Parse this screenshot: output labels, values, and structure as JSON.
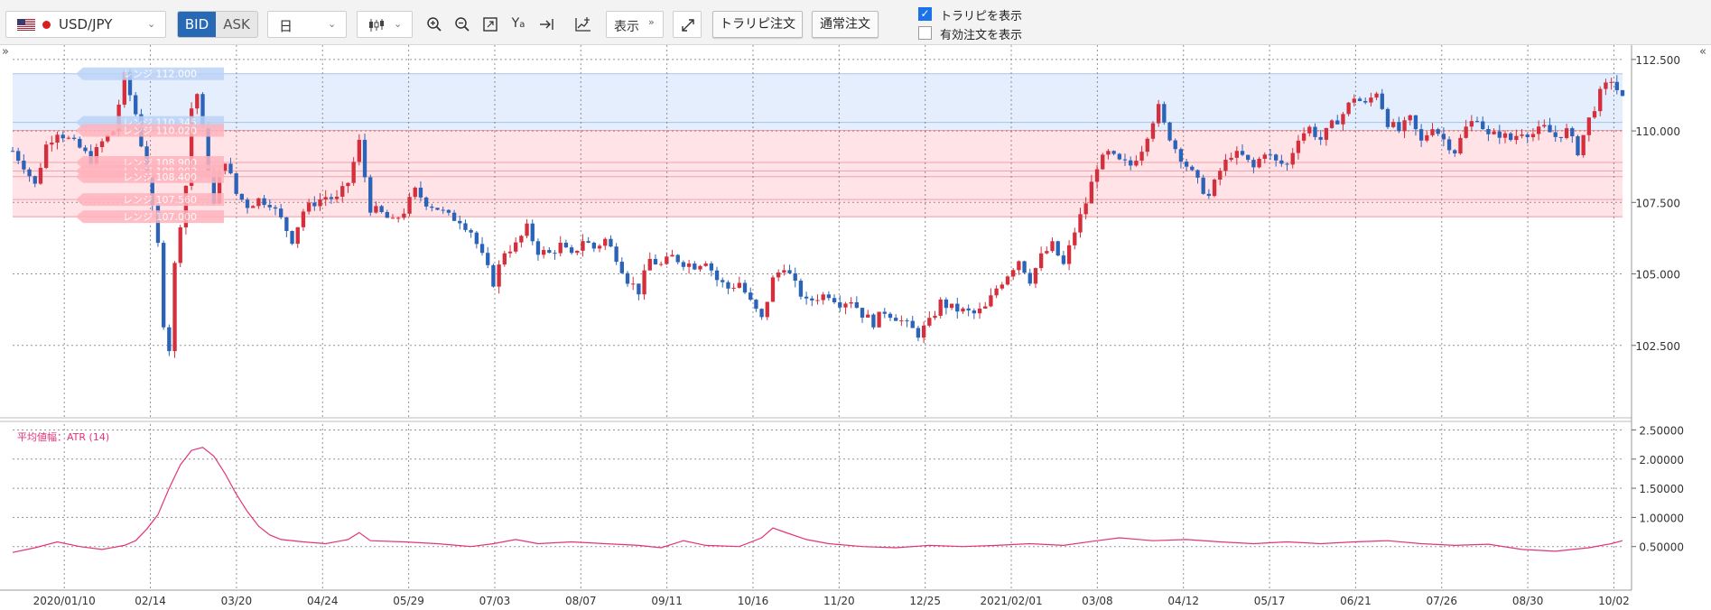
{
  "toolbar": {
    "symbol": "USD/JPY",
    "bid_label": "BID",
    "ask_label": "ASK",
    "period": "日",
    "display_label": "表示",
    "trap_order_label": "トラリピ注文",
    "normal_order_label": "通常注文",
    "show_trap_label": "トラリピを表示",
    "show_trap_checked": true,
    "show_active_orders_label": "有効注文を表示",
    "show_active_orders_checked": false,
    "icons": [
      "zoom-in-icon",
      "zoom-out-icon",
      "fit-icon",
      "price-label-icon",
      "scroll-end-icon",
      "add-indicator-icon",
      "fullscreen-icon"
    ]
  },
  "colors": {
    "up": "#d32f3c",
    "down": "#2b63b8",
    "atr_line": "#e3337a",
    "range_buy": "#ffd9dd",
    "range_sell": "#dce8fb",
    "accent": "#2869b5"
  },
  "chart_data": {
    "type": "candlestick",
    "instrument": "USD/JPY",
    "price_axis": {
      "ticks": [
        "112.500",
        "110.000",
        "107.500",
        "105.000",
        "102.500"
      ],
      "ylim": [
        100.0,
        113.0
      ]
    },
    "x_ticks": [
      "2020/01/10",
      "02/14",
      "03/20",
      "04/24",
      "05/29",
      "07/03",
      "08/07",
      "09/11",
      "10/16",
      "11/20",
      "12/25",
      "2021/02/01",
      "03/08",
      "04/12",
      "05/17",
      "06/21",
      "07/26",
      "08/30",
      "10/02"
    ],
    "close_path": [
      {
        "x": 0,
        "y": 109.3
      },
      {
        "x": 2,
        "y": 108.8
      },
      {
        "x": 4,
        "y": 108.1
      },
      {
        "x": 6,
        "y": 109.5
      },
      {
        "x": 8,
        "y": 110.0
      },
      {
        "x": 10,
        "y": 109.7
      },
      {
        "x": 12,
        "y": 109.4
      },
      {
        "x": 14,
        "y": 109.0
      },
      {
        "x": 16,
        "y": 109.6
      },
      {
        "x": 18,
        "y": 110.0
      },
      {
        "x": 20,
        "y": 111.9
      },
      {
        "x": 22,
        "y": 110.6
      },
      {
        "x": 24,
        "y": 108.5
      },
      {
        "x": 26,
        "y": 106.0
      },
      {
        "x": 27,
        "y": 103.3
      },
      {
        "x": 28,
        "y": 102.4
      },
      {
        "x": 29,
        "y": 105.3
      },
      {
        "x": 30,
        "y": 106.8
      },
      {
        "x": 31,
        "y": 108.1
      },
      {
        "x": 32,
        "y": 110.8
      },
      {
        "x": 33,
        "y": 111.3
      },
      {
        "x": 34,
        "y": 110.0
      },
      {
        "x": 35,
        "y": 108.7
      },
      {
        "x": 36,
        "y": 107.4
      },
      {
        "x": 37,
        "y": 108.5
      },
      {
        "x": 38,
        "y": 109.0
      },
      {
        "x": 40,
        "y": 107.8
      },
      {
        "x": 42,
        "y": 107.4
      },
      {
        "x": 44,
        "y": 107.6
      },
      {
        "x": 46,
        "y": 107.5
      },
      {
        "x": 48,
        "y": 106.9
      },
      {
        "x": 50,
        "y": 106.2
      },
      {
        "x": 52,
        "y": 107.2
      },
      {
        "x": 54,
        "y": 107.5
      },
      {
        "x": 56,
        "y": 107.7
      },
      {
        "x": 58,
        "y": 107.6
      },
      {
        "x": 60,
        "y": 108.2
      },
      {
        "x": 62,
        "y": 109.6
      },
      {
        "x": 63,
        "y": 108.4
      },
      {
        "x": 64,
        "y": 107.3
      },
      {
        "x": 66,
        "y": 107.1
      },
      {
        "x": 68,
        "y": 106.8
      },
      {
        "x": 70,
        "y": 107.2
      },
      {
        "x": 72,
        "y": 107.9
      },
      {
        "x": 74,
        "y": 107.5
      },
      {
        "x": 76,
        "y": 107.3
      },
      {
        "x": 78,
        "y": 107.0
      },
      {
        "x": 80,
        "y": 106.9
      },
      {
        "x": 82,
        "y": 106.5
      },
      {
        "x": 84,
        "y": 105.6
      },
      {
        "x": 86,
        "y": 104.7
      },
      {
        "x": 88,
        "y": 105.8
      },
      {
        "x": 90,
        "y": 106.0
      },
      {
        "x": 92,
        "y": 106.6
      },
      {
        "x": 94,
        "y": 105.8
      },
      {
        "x": 96,
        "y": 105.7
      },
      {
        "x": 98,
        "y": 106.0
      },
      {
        "x": 100,
        "y": 105.6
      },
      {
        "x": 102,
        "y": 106.2
      },
      {
        "x": 104,
        "y": 105.9
      },
      {
        "x": 106,
        "y": 106.2
      },
      {
        "x": 108,
        "y": 105.6
      },
      {
        "x": 110,
        "y": 104.8
      },
      {
        "x": 112,
        "y": 104.4
      },
      {
        "x": 114,
        "y": 105.5
      },
      {
        "x": 116,
        "y": 105.3
      },
      {
        "x": 118,
        "y": 105.6
      },
      {
        "x": 120,
        "y": 105.4
      },
      {
        "x": 122,
        "y": 105.3
      },
      {
        "x": 124,
        "y": 105.5
      },
      {
        "x": 126,
        "y": 104.8
      },
      {
        "x": 128,
        "y": 104.5
      },
      {
        "x": 130,
        "y": 104.7
      },
      {
        "x": 132,
        "y": 104.0
      },
      {
        "x": 134,
        "y": 103.4
      },
      {
        "x": 136,
        "y": 104.8
      },
      {
        "x": 138,
        "y": 105.3
      },
      {
        "x": 140,
        "y": 104.6
      },
      {
        "x": 142,
        "y": 104.0
      },
      {
        "x": 144,
        "y": 104.2
      },
      {
        "x": 146,
        "y": 104.3
      },
      {
        "x": 148,
        "y": 104.0
      },
      {
        "x": 150,
        "y": 104.1
      },
      {
        "x": 152,
        "y": 103.6
      },
      {
        "x": 154,
        "y": 103.3
      },
      {
        "x": 156,
        "y": 103.7
      },
      {
        "x": 158,
        "y": 103.5
      },
      {
        "x": 160,
        "y": 103.2
      },
      {
        "x": 162,
        "y": 102.9
      },
      {
        "x": 164,
        "y": 103.3
      },
      {
        "x": 166,
        "y": 104.0
      },
      {
        "x": 168,
        "y": 103.8
      },
      {
        "x": 170,
        "y": 103.7
      },
      {
        "x": 172,
        "y": 103.6
      },
      {
        "x": 174,
        "y": 103.8
      },
      {
        "x": 176,
        "y": 104.5
      },
      {
        "x": 178,
        "y": 105.0
      },
      {
        "x": 180,
        "y": 105.5
      },
      {
        "x": 182,
        "y": 104.8
      },
      {
        "x": 184,
        "y": 105.6
      },
      {
        "x": 186,
        "y": 106.0
      },
      {
        "x": 188,
        "y": 105.3
      },
      {
        "x": 190,
        "y": 106.5
      },
      {
        "x": 192,
        "y": 107.5
      },
      {
        "x": 194,
        "y": 108.8
      },
      {
        "x": 196,
        "y": 109.2
      },
      {
        "x": 198,
        "y": 108.9
      },
      {
        "x": 200,
        "y": 108.8
      },
      {
        "x": 202,
        "y": 109.4
      },
      {
        "x": 204,
        "y": 110.4
      },
      {
        "x": 205,
        "y": 110.8
      },
      {
        "x": 206,
        "y": 110.2
      },
      {
        "x": 208,
        "y": 109.4
      },
      {
        "x": 210,
        "y": 108.8
      },
      {
        "x": 212,
        "y": 108.2
      },
      {
        "x": 214,
        "y": 107.7
      },
      {
        "x": 216,
        "y": 108.6
      },
      {
        "x": 218,
        "y": 109.2
      },
      {
        "x": 220,
        "y": 109.1
      },
      {
        "x": 222,
        "y": 108.7
      },
      {
        "x": 224,
        "y": 109.3
      },
      {
        "x": 226,
        "y": 108.9
      },
      {
        "x": 228,
        "y": 108.8
      },
      {
        "x": 230,
        "y": 109.8
      },
      {
        "x": 232,
        "y": 110.1
      },
      {
        "x": 234,
        "y": 109.7
      },
      {
        "x": 236,
        "y": 110.2
      },
      {
        "x": 238,
        "y": 110.6
      },
      {
        "x": 240,
        "y": 111.2
      },
      {
        "x": 242,
        "y": 110.9
      },
      {
        "x": 244,
        "y": 111.4
      },
      {
        "x": 246,
        "y": 110.3
      },
      {
        "x": 248,
        "y": 110.0
      },
      {
        "x": 250,
        "y": 110.4
      },
      {
        "x": 252,
        "y": 109.6
      },
      {
        "x": 254,
        "y": 110.2
      },
      {
        "x": 256,
        "y": 109.7
      },
      {
        "x": 258,
        "y": 109.3
      },
      {
        "x": 260,
        "y": 110.1
      },
      {
        "x": 262,
        "y": 110.5
      },
      {
        "x": 264,
        "y": 109.8
      },
      {
        "x": 266,
        "y": 109.9
      },
      {
        "x": 268,
        "y": 109.7
      },
      {
        "x": 270,
        "y": 110.0
      },
      {
        "x": 272,
        "y": 109.9
      },
      {
        "x": 274,
        "y": 110.1
      },
      {
        "x": 276,
        "y": 109.8
      },
      {
        "x": 278,
        "y": 110.0
      },
      {
        "x": 280,
        "y": 109.3
      },
      {
        "x": 282,
        "y": 110.4
      },
      {
        "x": 284,
        "y": 111.3
      },
      {
        "x": 286,
        "y": 111.8
      },
      {
        "x": 288,
        "y": 111.1
      }
    ],
    "x_range": [
      0,
      288
    ],
    "trap_ranges": [
      {
        "type": "sell",
        "label": "レンジ 112.000",
        "from": 110.3,
        "to": 112.0
      },
      {
        "type": "sell",
        "label": "レンジ 110.345",
        "from": 110.0,
        "to": 110.3
      },
      {
        "type": "buy",
        "label": "レンジ 110.020",
        "from": 108.9,
        "to": 110.02
      },
      {
        "type": "buy",
        "label": "レンジ 108.900",
        "from": 108.6,
        "to": 108.9
      },
      {
        "type": "buy",
        "label": "レンジ 108.900",
        "from": 108.4,
        "to": 108.6
      },
      {
        "type": "buy",
        "label": "レンジ 108.400",
        "from": 107.6,
        "to": 108.4
      },
      {
        "type": "buy",
        "label": "レンジ 107.560",
        "from": 107.0,
        "to": 107.6
      },
      {
        "type": "buy",
        "label": "レンジ 107.000",
        "from": 107.0,
        "to": 107.0
      }
    ],
    "indicator": {
      "label": "平均値幅：ATR (14)",
      "axis_ticks": [
        "2.50000",
        "2.00000",
        "1.50000",
        "1.00000",
        "0.50000"
      ],
      "ylim": [
        0.0,
        2.6
      ],
      "path": [
        {
          "x": 0,
          "y": 0.4
        },
        {
          "x": 4,
          "y": 0.48
        },
        {
          "x": 8,
          "y": 0.58
        },
        {
          "x": 12,
          "y": 0.5
        },
        {
          "x": 16,
          "y": 0.45
        },
        {
          "x": 20,
          "y": 0.52
        },
        {
          "x": 22,
          "y": 0.6
        },
        {
          "x": 24,
          "y": 0.8
        },
        {
          "x": 26,
          "y": 1.05
        },
        {
          "x": 28,
          "y": 1.5
        },
        {
          "x": 30,
          "y": 1.9
        },
        {
          "x": 32,
          "y": 2.15
        },
        {
          "x": 34,
          "y": 2.2
        },
        {
          "x": 36,
          "y": 2.05
        },
        {
          "x": 38,
          "y": 1.75
        },
        {
          "x": 40,
          "y": 1.4
        },
        {
          "x": 42,
          "y": 1.1
        },
        {
          "x": 44,
          "y": 0.85
        },
        {
          "x": 46,
          "y": 0.7
        },
        {
          "x": 48,
          "y": 0.62
        },
        {
          "x": 52,
          "y": 0.58
        },
        {
          "x": 56,
          "y": 0.55
        },
        {
          "x": 60,
          "y": 0.62
        },
        {
          "x": 62,
          "y": 0.74
        },
        {
          "x": 64,
          "y": 0.6
        },
        {
          "x": 70,
          "y": 0.58
        },
        {
          "x": 76,
          "y": 0.55
        },
        {
          "x": 82,
          "y": 0.5
        },
        {
          "x": 86,
          "y": 0.55
        },
        {
          "x": 90,
          "y": 0.62
        },
        {
          "x": 94,
          "y": 0.55
        },
        {
          "x": 100,
          "y": 0.58
        },
        {
          "x": 106,
          "y": 0.55
        },
        {
          "x": 112,
          "y": 0.52
        },
        {
          "x": 116,
          "y": 0.48
        },
        {
          "x": 120,
          "y": 0.6
        },
        {
          "x": 124,
          "y": 0.52
        },
        {
          "x": 130,
          "y": 0.5
        },
        {
          "x": 134,
          "y": 0.65
        },
        {
          "x": 136,
          "y": 0.82
        },
        {
          "x": 138,
          "y": 0.75
        },
        {
          "x": 142,
          "y": 0.62
        },
        {
          "x": 146,
          "y": 0.55
        },
        {
          "x": 152,
          "y": 0.5
        },
        {
          "x": 158,
          "y": 0.48
        },
        {
          "x": 164,
          "y": 0.52
        },
        {
          "x": 170,
          "y": 0.5
        },
        {
          "x": 176,
          "y": 0.52
        },
        {
          "x": 182,
          "y": 0.55
        },
        {
          "x": 188,
          "y": 0.52
        },
        {
          "x": 194,
          "y": 0.6
        },
        {
          "x": 198,
          "y": 0.65
        },
        {
          "x": 204,
          "y": 0.6
        },
        {
          "x": 210,
          "y": 0.62
        },
        {
          "x": 216,
          "y": 0.58
        },
        {
          "x": 222,
          "y": 0.55
        },
        {
          "x": 228,
          "y": 0.58
        },
        {
          "x": 234,
          "y": 0.55
        },
        {
          "x": 240,
          "y": 0.58
        },
        {
          "x": 246,
          "y": 0.6
        },
        {
          "x": 252,
          "y": 0.55
        },
        {
          "x": 258,
          "y": 0.52
        },
        {
          "x": 264,
          "y": 0.54
        },
        {
          "x": 270,
          "y": 0.45
        },
        {
          "x": 276,
          "y": 0.42
        },
        {
          "x": 282,
          "y": 0.48
        },
        {
          "x": 286,
          "y": 0.55
        },
        {
          "x": 288,
          "y": 0.6
        }
      ]
    }
  }
}
